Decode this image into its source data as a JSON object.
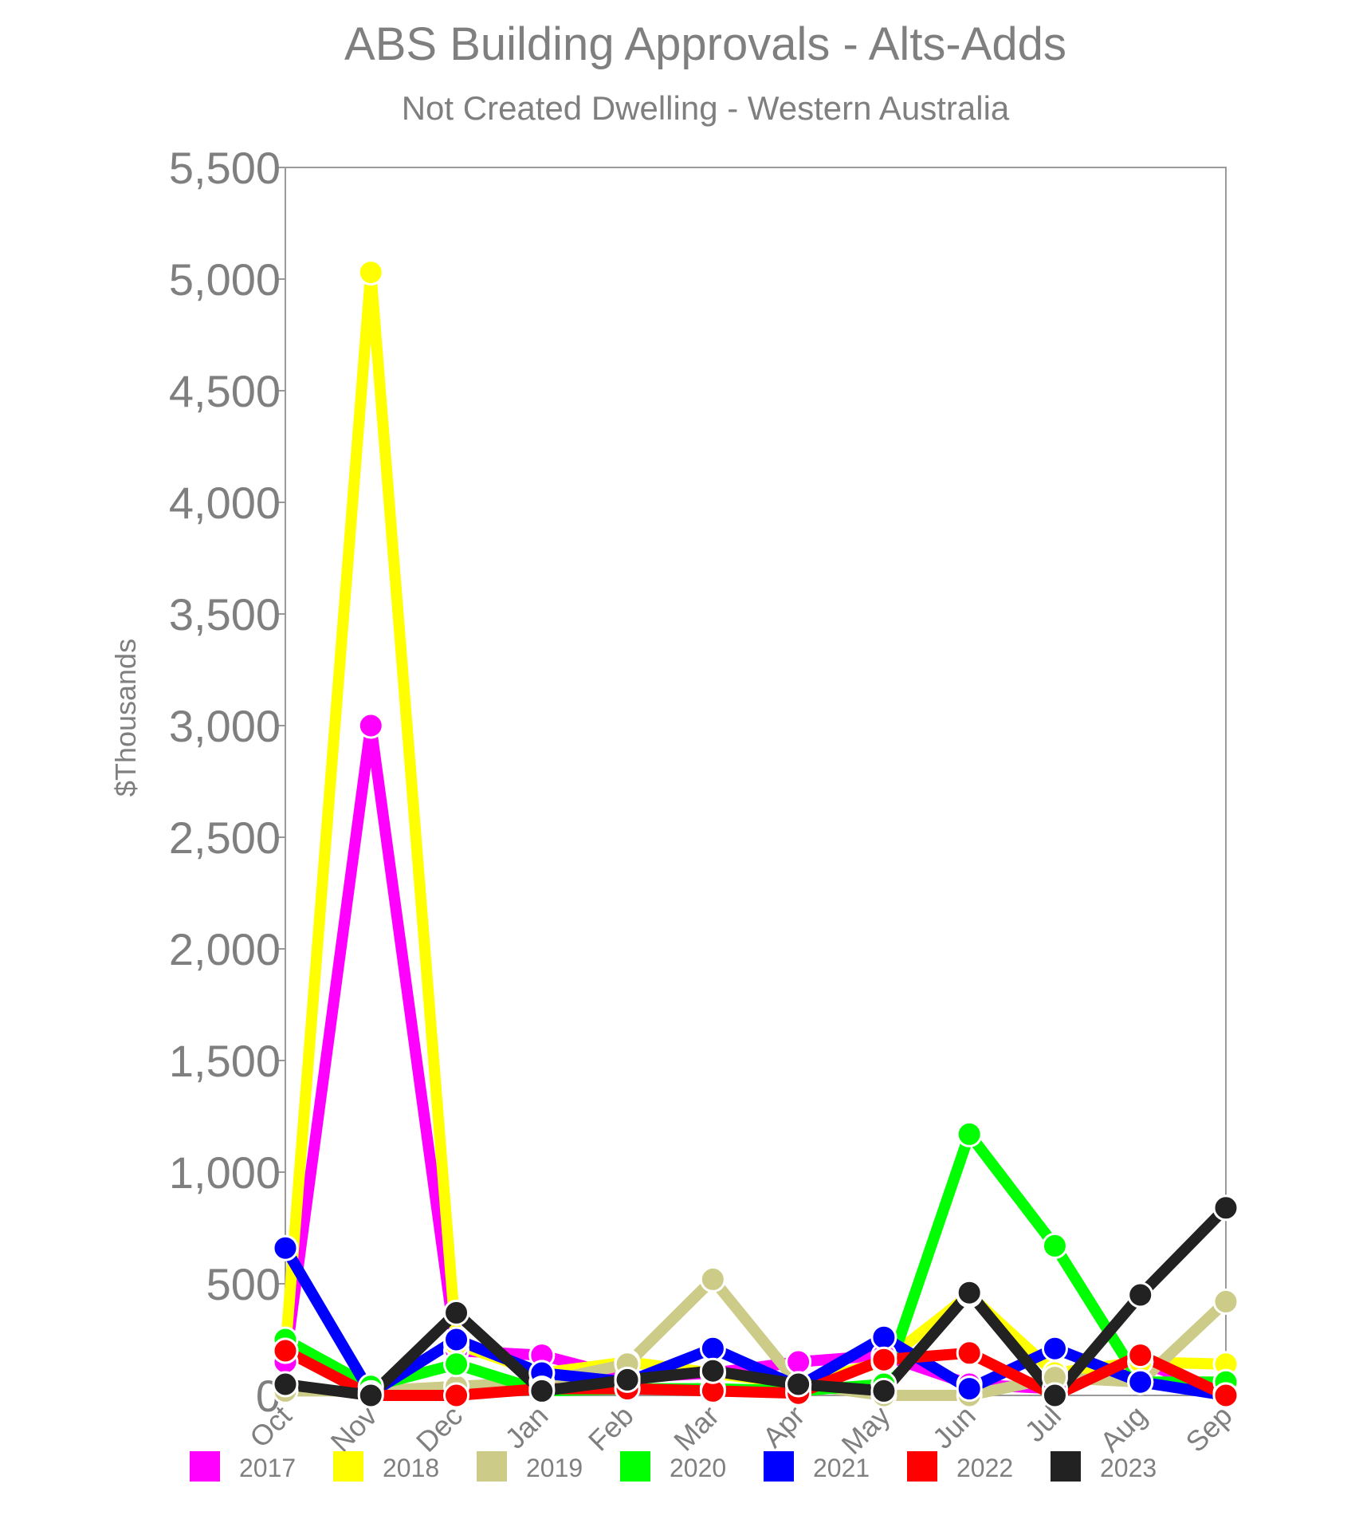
{
  "chart_data": {
    "type": "line",
    "title": "ABS Building Approvals - Alts-Adds",
    "subtitle": "Not Created Dwelling - Western Australia",
    "xlabel": "",
    "ylabel": "$Thousands",
    "ylim": [
      0,
      5500
    ],
    "yticks": [
      0,
      500,
      1000,
      1500,
      2000,
      2500,
      3000,
      3500,
      4000,
      4500,
      5000,
      5500
    ],
    "ytick_labels": [
      "0",
      "500",
      "1,000",
      "1,500",
      "2,000",
      "2,500",
      "3,000",
      "3,500",
      "4,000",
      "4,500",
      "5,000",
      "5,500"
    ],
    "categories": [
      "Oct",
      "Nov",
      "Dec",
      "Jan",
      "Feb",
      "Mar",
      "Apr",
      "May",
      "Jun",
      "Jul",
      "Aug",
      "Sep"
    ],
    "grid": false,
    "legend_position": "bottom",
    "series": [
      {
        "name": "2017",
        "color": "#ff00ff",
        "values": [
          150,
          3000,
          200,
          180,
          80,
          100,
          150,
          180,
          50,
          30,
          150,
          10
        ]
      },
      {
        "name": "2018",
        "color": "#ffff00",
        "values": [
          200,
          5030,
          230,
          100,
          150,
          100,
          50,
          150,
          450,
          100,
          150,
          140
        ]
      },
      {
        "name": "2019",
        "color": "#cccc88",
        "values": [
          20,
          20,
          40,
          60,
          140,
          520,
          50,
          0,
          0,
          80,
          60,
          420
        ]
      },
      {
        "name": "2020",
        "color": "#00ff00",
        "values": [
          250,
          40,
          140,
          20,
          30,
          30,
          20,
          50,
          1170,
          670,
          60,
          60
        ]
      },
      {
        "name": "2021",
        "color": "#0000ff",
        "values": [
          660,
          10,
          250,
          100,
          60,
          210,
          40,
          260,
          30,
          210,
          60,
          0
        ]
      },
      {
        "name": "2022",
        "color": "#ff0000",
        "values": [
          200,
          0,
          0,
          30,
          30,
          20,
          10,
          160,
          190,
          0,
          180,
          0
        ]
      },
      {
        "name": "2023",
        "color": "#222222",
        "values": [
          50,
          0,
          370,
          20,
          70,
          110,
          50,
          20,
          460,
          0,
          450,
          840
        ]
      }
    ]
  }
}
